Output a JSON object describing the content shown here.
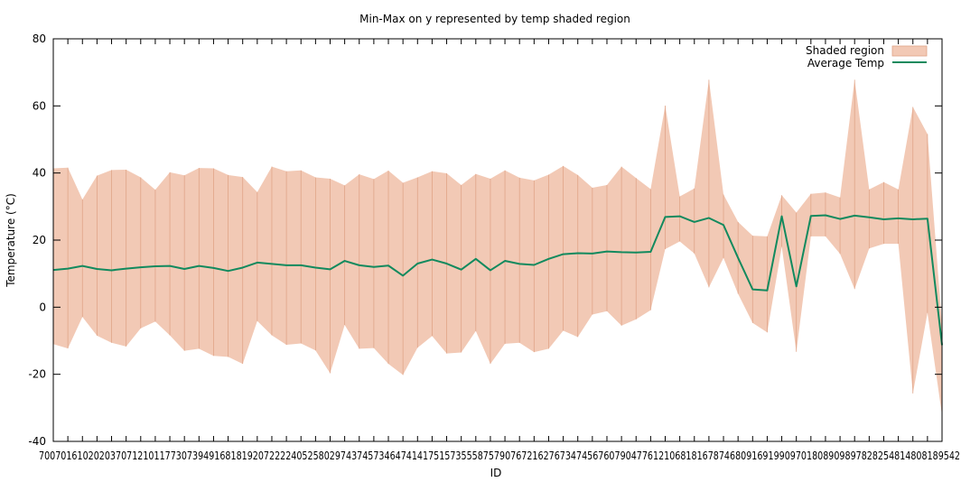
{
  "chart_data": {
    "type": "area",
    "title": "Min-Max on y represented by temp shaded region",
    "xlabel": "ID",
    "ylabel": "Temperature (°C)",
    "ylim": [
      -40,
      80
    ],
    "yticks": [
      "-40",
      "-20",
      "0",
      "20",
      "40",
      "60",
      "80"
    ],
    "xtick_text": "700701610202037071210117730739491681819207222240525802974374573464741417515735558757907672162767347456760790477612106818167874680916919909701808909897828254814808189542",
    "grid": false,
    "legend_position": "top-right",
    "colors": {
      "band": "#f2c9b5",
      "band_edge": "#e0a488",
      "line": "#128a5e"
    },
    "series": [
      {
        "name": "Shaded region",
        "type": "band",
        "max": [
          41.4,
          41.6,
          32.1,
          39.2,
          40.9,
          41.0,
          38.7,
          35.0,
          40.2,
          39.3,
          41.5,
          41.4,
          39.4,
          38.8,
          34.3,
          41.9,
          40.5,
          40.8,
          38.7,
          38.3,
          36.3,
          39.6,
          38.2,
          40.7,
          37.1,
          38.7,
          40.5,
          39.9,
          36.4,
          39.7,
          38.3,
          40.8,
          38.6,
          37.8,
          39.5,
          42.1,
          39.4,
          35.6,
          36.4,
          41.9,
          38.5,
          35.2,
          60.1,
          33.0,
          35.4,
          67.8,
          33.6,
          25.4,
          21.3,
          21.1,
          33.4,
          28.2,
          33.8,
          34.2,
          32.7,
          67.8,
          35.1,
          37.3,
          35.1,
          59.7,
          51.6,
          -5.4
        ],
        "min": [
          -11.0,
          -12.3,
          -2.9,
          -8.5,
          -10.6,
          -11.7,
          -6.3,
          -4.3,
          -8.4,
          -13.0,
          -12.4,
          -14.5,
          -14.8,
          -16.9,
          -4.1,
          -8.4,
          -11.2,
          -10.8,
          -12.9,
          -19.7,
          -5.3,
          -12.4,
          -12.2,
          -16.9,
          -20.2,
          -12.1,
          -8.6,
          -13.8,
          -13.5,
          -7.1,
          -16.9,
          -10.9,
          -10.6,
          -13.4,
          -12.4,
          -7.0,
          -8.9,
          -2.2,
          -1.2,
          -5.5,
          -3.6,
          -0.9,
          17.3,
          19.6,
          16.0,
          5.9,
          14.7,
          4.0,
          -4.7,
          -7.5,
          18.0,
          -13.3,
          21.1,
          21.1,
          15.9,
          5.4,
          17.5,
          18.9,
          18.9,
          -25.7,
          -1.7,
          -32.2
        ]
      },
      {
        "name": "Average Temp",
        "type": "line",
        "values": [
          11.1,
          11.5,
          12.3,
          11.4,
          11.0,
          11.5,
          11.9,
          12.2,
          12.3,
          11.4,
          12.3,
          11.7,
          10.8,
          11.8,
          13.3,
          12.9,
          12.5,
          12.5,
          11.8,
          11.3,
          13.8,
          12.5,
          12.0,
          12.4,
          9.4,
          13.0,
          14.2,
          13.0,
          11.2,
          14.4,
          11.0,
          13.8,
          12.9,
          12.6,
          14.4,
          15.8,
          16.1,
          16.0,
          16.6,
          16.4,
          16.3,
          16.5,
          26.9,
          27.1,
          25.4,
          26.6,
          24.5,
          14.7,
          5.3,
          5.0,
          27.1,
          6.2,
          27.2,
          27.4,
          26.3,
          27.3,
          26.8,
          26.2,
          26.5,
          26.2,
          26.4,
          -11.3
        ]
      }
    ]
  }
}
